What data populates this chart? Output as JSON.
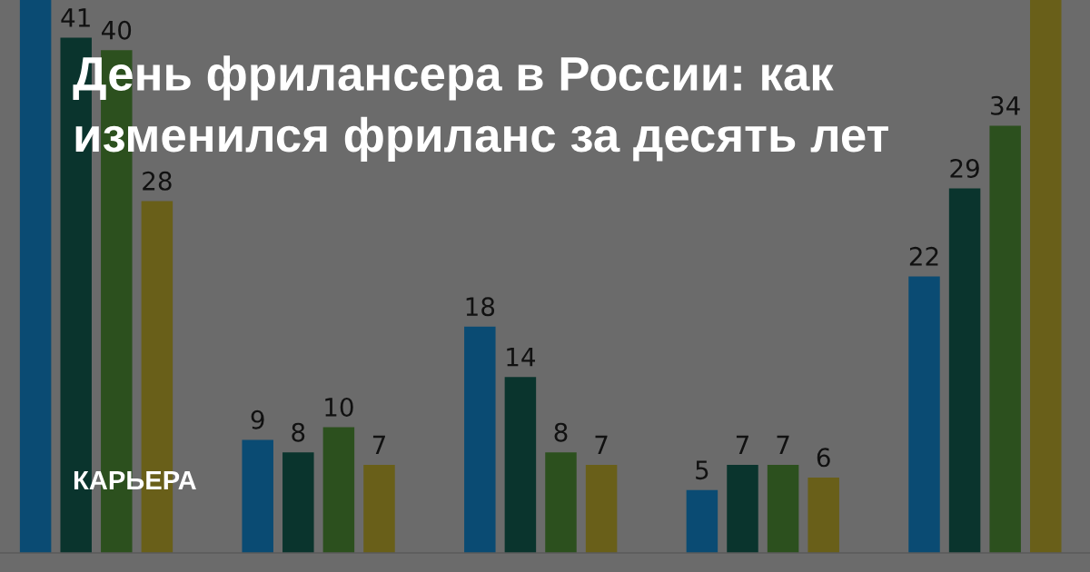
{
  "chart_data": {
    "type": "bar",
    "title": "День фрилансера в России: как\nизменился фриланс за десять лет",
    "annotations": [
      "КАРЬЕРА"
    ],
    "categories": [
      null,
      null,
      null,
      null,
      null
    ],
    "series": [
      {
        "color": "#0a4b73",
        "values": [
          44,
          9,
          18,
          5,
          22
        ],
        "value_labels": [
          null,
          "9",
          "18",
          "5",
          "22"
        ]
      },
      {
        "color": "#0a342d",
        "values": [
          41,
          8,
          14,
          7,
          29
        ],
        "value_labels": [
          "41",
          "8",
          "14",
          "7",
          "29"
        ]
      },
      {
        "color": "#2c501e",
        "values": [
          40,
          10,
          8,
          7,
          34
        ],
        "value_labels": [
          "40",
          "10",
          "8",
          "7",
          "34"
        ]
      },
      {
        "color": "#695f19",
        "values": [
          28,
          7,
          7,
          6,
          44
        ],
        "value_labels": [
          "28",
          "7",
          "7",
          "6",
          null
        ]
      }
    ],
    "ylim": [
      0,
      44
    ]
  }
}
